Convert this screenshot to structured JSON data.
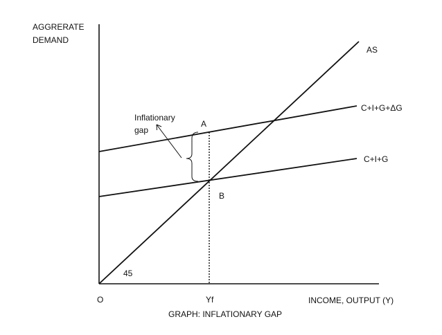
{
  "title": "GRAPH: INFLATIONARY GAP",
  "y_axis_label": [
    "AGGRERATE",
    "DEMAND"
  ],
  "x_axis_label": "INCOME, OUTPUT (Y)",
  "origin_label": "O",
  "angle_label": "45",
  "full_employment_label": "Yf",
  "lines": {
    "as": "AS",
    "ad_high": "C+I+G+ΔG",
    "ad_low": "C+I+G"
  },
  "points": {
    "a": "A",
    "b": "B"
  },
  "gap_annotation": [
    "Inflationary",
    "gap"
  ]
}
